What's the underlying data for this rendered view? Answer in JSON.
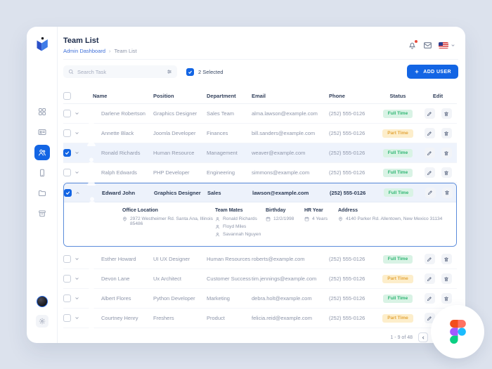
{
  "header": {
    "title": "Team List",
    "breadcrumb": {
      "parent": "Admin Dashboard",
      "separator": "›",
      "current": "Team List"
    }
  },
  "toolbar": {
    "search_placeholder": "Search Task",
    "selected_label": "2 Selected",
    "add_user_label": "ADD USER"
  },
  "sidebar": {
    "items": [
      {
        "name": "dashboard",
        "icon": "grid-icon",
        "active": false
      },
      {
        "name": "cards",
        "icon": "id-card-icon",
        "active": false
      },
      {
        "name": "team",
        "icon": "users-icon",
        "active": true
      },
      {
        "name": "devices",
        "icon": "phone-icon",
        "active": false
      },
      {
        "name": "files",
        "icon": "folder-icon",
        "active": false
      },
      {
        "name": "archive",
        "icon": "archive-icon",
        "active": false
      }
    ]
  },
  "table": {
    "columns": {
      "name": "Name",
      "position": "Position",
      "department": "Department",
      "email": "Email",
      "phone": "Phone",
      "status": "Status",
      "edit": "Edit"
    },
    "rows": [
      {
        "name": "Darlene Robertson",
        "position": "Graphics Designer",
        "department": "Sales Team",
        "email": "alma.lawson@example.com",
        "phone": "(252) 555-0126",
        "status": "Full Time",
        "checked": false,
        "expanded": false,
        "avatar_color": "#6fa8d8"
      },
      {
        "name": "Annette Black",
        "position": "Joomla Developer",
        "department": "Finances",
        "email": "bill.sanders@example.com",
        "phone": "(252) 555-0126",
        "status": "Part Time",
        "checked": false,
        "expanded": false,
        "avatar_color": "#c9a189"
      },
      {
        "name": "Ronald Richards",
        "position": "Human Resource",
        "department": "Management",
        "email": "weaver@example.com",
        "phone": "(252) 555-0126",
        "status": "Full Time",
        "checked": true,
        "expanded": false,
        "avatar_color": "#8d6e56"
      },
      {
        "name": "Ralph Edwards",
        "position": "PHP Developer",
        "department": "Engineering",
        "email": "simmons@example.com",
        "phone": "(252) 555-0126",
        "status": "Full Time",
        "checked": false,
        "expanded": false,
        "avatar_color": "#bfd2c6"
      },
      {
        "name": "Edward John",
        "position": "Graphics Designer",
        "department": "Sales",
        "email": "lawson@example.com",
        "phone": "(252) 555-0126",
        "status": "Full Time",
        "checked": true,
        "expanded": true,
        "avatar_color": "#9aa0a8"
      },
      {
        "name": "Esther Howard",
        "position": "UI UX Designer",
        "department": "Human Resources",
        "email": "roberts@example.com",
        "phone": "(252) 555-0126",
        "status": "Full Time",
        "checked": false,
        "expanded": false,
        "avatar_color": "#3f4450"
      },
      {
        "name": "Devon Lane",
        "position": "Ux Architect",
        "department": "Customer Success",
        "email": "tim.jennings@example.com",
        "phone": "(252) 555-0126",
        "status": "Part Time",
        "checked": false,
        "expanded": false,
        "avatar_color": "#35b0c9"
      },
      {
        "name": "Albert Flores",
        "position": "Python Developer",
        "department": "Marketing",
        "email": "debra.holt@example.com",
        "phone": "(252) 555-0126",
        "status": "Full Time",
        "checked": false,
        "expanded": false,
        "avatar_color": "#c2cad4"
      },
      {
        "name": "Courtney Henry",
        "position": "Freshers",
        "department": "Product",
        "email": "felicia.reid@example.com",
        "phone": "(252) 555-0126",
        "status": "Part Time",
        "checked": false,
        "expanded": false,
        "avatar_color": "#a3b07e"
      }
    ]
  },
  "expanded_details": {
    "office_location": {
      "label": "Office Location",
      "value": "2972 Westheimer Rd. Santa Ana, Illinois 85486"
    },
    "team_mates": {
      "label": "Team Mates",
      "members": [
        "Ronald Richards",
        "Floyd Miles",
        "Savannah Nguyen"
      ]
    },
    "birthday": {
      "label": "Birthday",
      "value": "12/2/1998"
    },
    "hr_year": {
      "label": "HR Year",
      "value": "4 Years"
    },
    "address": {
      "label": "Address",
      "value": "4140 Parker Rd. Allentown, New Mexico 31134"
    }
  },
  "pagination": {
    "range_label": "1 - 9 of 48"
  },
  "status_styles": {
    "Full Time": {
      "bg": "#d9f3e5",
      "text": "#2fb573"
    },
    "Part Time": {
      "bg": "#fdeecb",
      "text": "#e3a63d"
    }
  },
  "colors": {
    "accent": "#1365e4"
  }
}
